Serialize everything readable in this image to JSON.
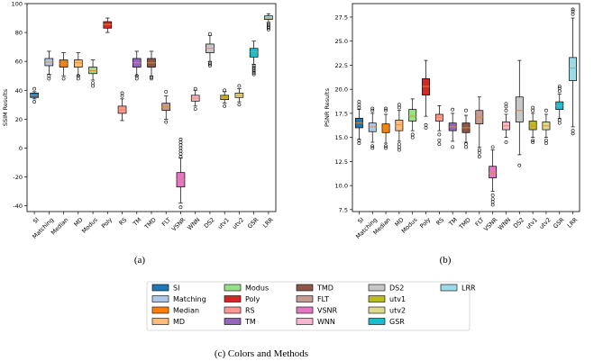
{
  "chart_data": [
    {
      "type": "box",
      "panel": "(a)",
      "ylabel": "SSIM Results",
      "ylim": [
        -44,
        100
      ],
      "yticks": [
        -40,
        -20,
        0,
        20,
        40,
        60,
        80,
        100
      ],
      "categories": [
        "SI",
        "Matching",
        "Median",
        "MD",
        "Modus",
        "Poly",
        "RS",
        "TM",
        "TMD",
        "FLT",
        "VSNR",
        "WNN",
        "DS2",
        "utv1",
        "utv2",
        "GSR",
        "LRR"
      ],
      "boxes": [
        {
          "min": 34,
          "q1": 35,
          "med": 36.5,
          "q3": 38,
          "max": 39,
          "fliers": [
            32,
            41
          ]
        },
        {
          "min": 51,
          "q1": 57,
          "med": 59.5,
          "q3": 62,
          "max": 67,
          "fliers": [
            48,
            50
          ]
        },
        {
          "min": 50,
          "q1": 56,
          "med": 58.5,
          "q3": 61,
          "max": 66,
          "fliers": [
            48
          ]
        },
        {
          "min": 50,
          "q1": 56,
          "med": 59,
          "q3": 61,
          "max": 66,
          "fliers": [
            48,
            50
          ]
        },
        {
          "min": 47,
          "q1": 51.5,
          "med": 53.5,
          "q3": 56,
          "max": 61,
          "fliers": [
            43,
            45
          ]
        },
        {
          "min": 80,
          "q1": 83,
          "med": 85.5,
          "q3": 87.5,
          "max": 90,
          "fliers": []
        },
        {
          "min": 19,
          "q1": 24,
          "med": 26.5,
          "q3": 29,
          "max": 34,
          "fliers": [
            36,
            38
          ]
        },
        {
          "min": 50,
          "q1": 56,
          "med": 59,
          "q3": 62,
          "max": 67,
          "fliers": [
            48,
            50
          ]
        },
        {
          "min": 50,
          "q1": 56,
          "med": 59,
          "q3": 62,
          "max": 67,
          "fliers": [
            48,
            49
          ]
        },
        {
          "min": 20,
          "q1": 26,
          "med": 28.5,
          "q3": 31,
          "max": 36,
          "fliers": [
            18,
            39
          ]
        },
        {
          "min": -38,
          "q1": -27,
          "med": -22,
          "q3": -17,
          "max": -7,
          "fliers": [
            -41,
            -6,
            -4,
            -2,
            0,
            2,
            4,
            6
          ]
        },
        {
          "min": 29,
          "q1": 32.5,
          "med": 34.5,
          "q3": 36.5,
          "max": 40,
          "fliers": [
            27,
            41
          ]
        },
        {
          "min": 60,
          "q1": 66,
          "med": 69,
          "q3": 72,
          "max": 78,
          "fliers": [
            57,
            58,
            59,
            79
          ]
        },
        {
          "min": 31,
          "q1": 33.5,
          "med": 35,
          "q3": 36.5,
          "max": 39,
          "fliers": [
            29,
            40
          ]
        },
        {
          "min": 32,
          "q1": 35,
          "med": 36.5,
          "q3": 38,
          "max": 41,
          "fliers": [
            30,
            43
          ]
        },
        {
          "min": 58,
          "q1": 63,
          "med": 66.5,
          "q3": 69,
          "max": 74,
          "fliers": [
            51,
            52,
            53,
            54,
            55,
            56,
            57
          ]
        },
        {
          "min": 87,
          "q1": 89,
          "med": 90,
          "q3": 91.5,
          "max": 93,
          "fliers": [
            82,
            83,
            84,
            85,
            86
          ]
        }
      ]
    },
    {
      "type": "box",
      "panel": "(b)",
      "ylabel": "PSNR Results",
      "ylim": [
        7.3,
        28.9
      ],
      "yticks": [
        7.5,
        10.0,
        12.5,
        15.0,
        17.5,
        20.0,
        22.5,
        25.0,
        27.5
      ],
      "categories": [
        "SI",
        "Matching",
        "Median",
        "MD",
        "Modus",
        "Poly",
        "RS",
        "TM",
        "TMD",
        "FLT",
        "VSNR",
        "WNN",
        "DS2",
        "utv1",
        "utv2",
        "GSR",
        "LRR"
      ],
      "boxes": [
        {
          "min": 14.8,
          "q1": 16.0,
          "med": 16.5,
          "q3": 17.0,
          "max": 17.9,
          "fliers": [
            14.4,
            14.7,
            18.1,
            18.4,
            18.7
          ]
        },
        {
          "min": 14.5,
          "q1": 15.6,
          "med": 16.1,
          "q3": 16.5,
          "max": 17.5,
          "fliers": [
            13.9,
            14.1,
            17.8,
            18.0
          ]
        },
        {
          "min": 14.4,
          "q1": 15.5,
          "med": 16.0,
          "q3": 16.4,
          "max": 17.4,
          "fliers": [
            13.9,
            14.1,
            17.8,
            18.0
          ]
        },
        {
          "min": 14.6,
          "q1": 15.7,
          "med": 16.3,
          "q3": 16.8,
          "max": 17.8,
          "fliers": [
            13.7,
            14.0,
            14.3,
            18.1,
            18.4
          ]
        },
        {
          "min": 15.7,
          "q1": 16.7,
          "med": 17.2,
          "q3": 17.9,
          "max": 19.0,
          "fliers": [
            15.0,
            15.3
          ]
        },
        {
          "min": 17.2,
          "q1": 19.4,
          "med": 20.3,
          "q3": 21.1,
          "max": 23.0,
          "fliers": [
            16.0,
            16.3
          ]
        },
        {
          "min": 15.7,
          "q1": 16.7,
          "med": 17.1,
          "q3": 17.4,
          "max": 18.3,
          "fliers": [
            14.3,
            14.7,
            15.3
          ]
        },
        {
          "min": 14.6,
          "q1": 15.7,
          "med": 16.1,
          "q3": 16.5,
          "max": 17.5,
          "fliers": [
            14.0,
            17.9
          ]
        },
        {
          "min": 14.5,
          "q1": 15.5,
          "med": 16.0,
          "q3": 16.5,
          "max": 17.3,
          "fliers": [
            14.0,
            14.3,
            17.8
          ]
        },
        {
          "min": 14.0,
          "q1": 16.4,
          "med": 17.1,
          "q3": 17.8,
          "max": 19.2,
          "fliers": [
            13.0,
            13.4,
            13.7
          ]
        },
        {
          "min": 9.4,
          "q1": 10.8,
          "med": 11.3,
          "q3": 12.0,
          "max": 13.7,
          "fliers": [
            8.0,
            8.3,
            8.6,
            9.0,
            14.0
          ]
        },
        {
          "min": 15.0,
          "q1": 15.8,
          "med": 16.2,
          "q3": 16.6,
          "max": 17.4,
          "fliers": [
            14.5,
            17.8,
            18.2,
            18.5
          ]
        },
        {
          "min": 13.2,
          "q1": 16.6,
          "med": 17.8,
          "q3": 19.2,
          "max": 23.0,
          "fliers": [
            12.1
          ]
        },
        {
          "min": 15.0,
          "q1": 15.8,
          "med": 16.2,
          "q3": 16.7,
          "max": 17.5,
          "fliers": [
            14.5,
            14.7,
            17.8,
            18.1
          ]
        },
        {
          "min": 15.0,
          "q1": 15.8,
          "med": 16.2,
          "q3": 16.6,
          "max": 17.4,
          "fliers": [
            14.4,
            14.7,
            17.8
          ]
        },
        {
          "min": 17.0,
          "q1": 17.9,
          "med": 18.3,
          "q3": 18.7,
          "max": 19.5,
          "fliers": [
            16.5,
            16.8,
            19.8,
            20.1,
            20.3
          ]
        },
        {
          "min": 16.1,
          "q1": 20.9,
          "med": 22.2,
          "q3": 23.3,
          "max": 27.4,
          "fliers": [
            15.4,
            15.7,
            27.8,
            28.1,
            28.3
          ]
        }
      ]
    }
  ],
  "captions": {
    "a": "(a)",
    "b": "(b)",
    "c": "(c) Colors and Methods"
  },
  "legend": [
    {
      "name": "SI",
      "color": "#1f77b4"
    },
    {
      "name": "Matching",
      "color": "#aec7e8"
    },
    {
      "name": "Median",
      "color": "#ff7f0e"
    },
    {
      "name": "MD",
      "color": "#ffbb78"
    },
    {
      "name": "Modus",
      "color": "#98df8a"
    },
    {
      "name": "Poly",
      "color": "#d62728"
    },
    {
      "name": "RS",
      "color": "#ff9896"
    },
    {
      "name": "TM",
      "color": "#9467bd"
    },
    {
      "name": "TMD",
      "color": "#8c564b"
    },
    {
      "name": "FLT",
      "color": "#c49c94"
    },
    {
      "name": "VSNR",
      "color": "#e377c2"
    },
    {
      "name": "WNN",
      "color": "#f7b6d2"
    },
    {
      "name": "DS2",
      "color": "#c7c7c7"
    },
    {
      "name": "utv1",
      "color": "#bcbd22"
    },
    {
      "name": "utv2",
      "color": "#dbdb8d"
    },
    {
      "name": "GSR",
      "color": "#17becf"
    },
    {
      "name": "LRR",
      "color": "#9edae5"
    }
  ]
}
